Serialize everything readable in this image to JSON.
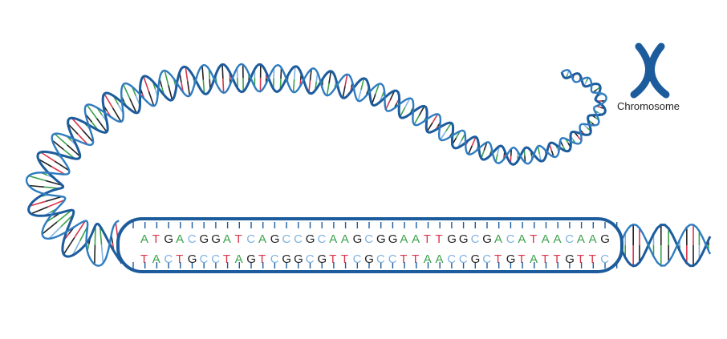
{
  "label": "Chromosome",
  "sequence": {
    "top": "ATGACGGATCAGCCGCAAGCGGAATTGGCGACATAACAAG",
    "bottom": "TACTGCCTAGTCGGCGTTCGCCTTAACCGCTGTATTGTTC"
  }
}
